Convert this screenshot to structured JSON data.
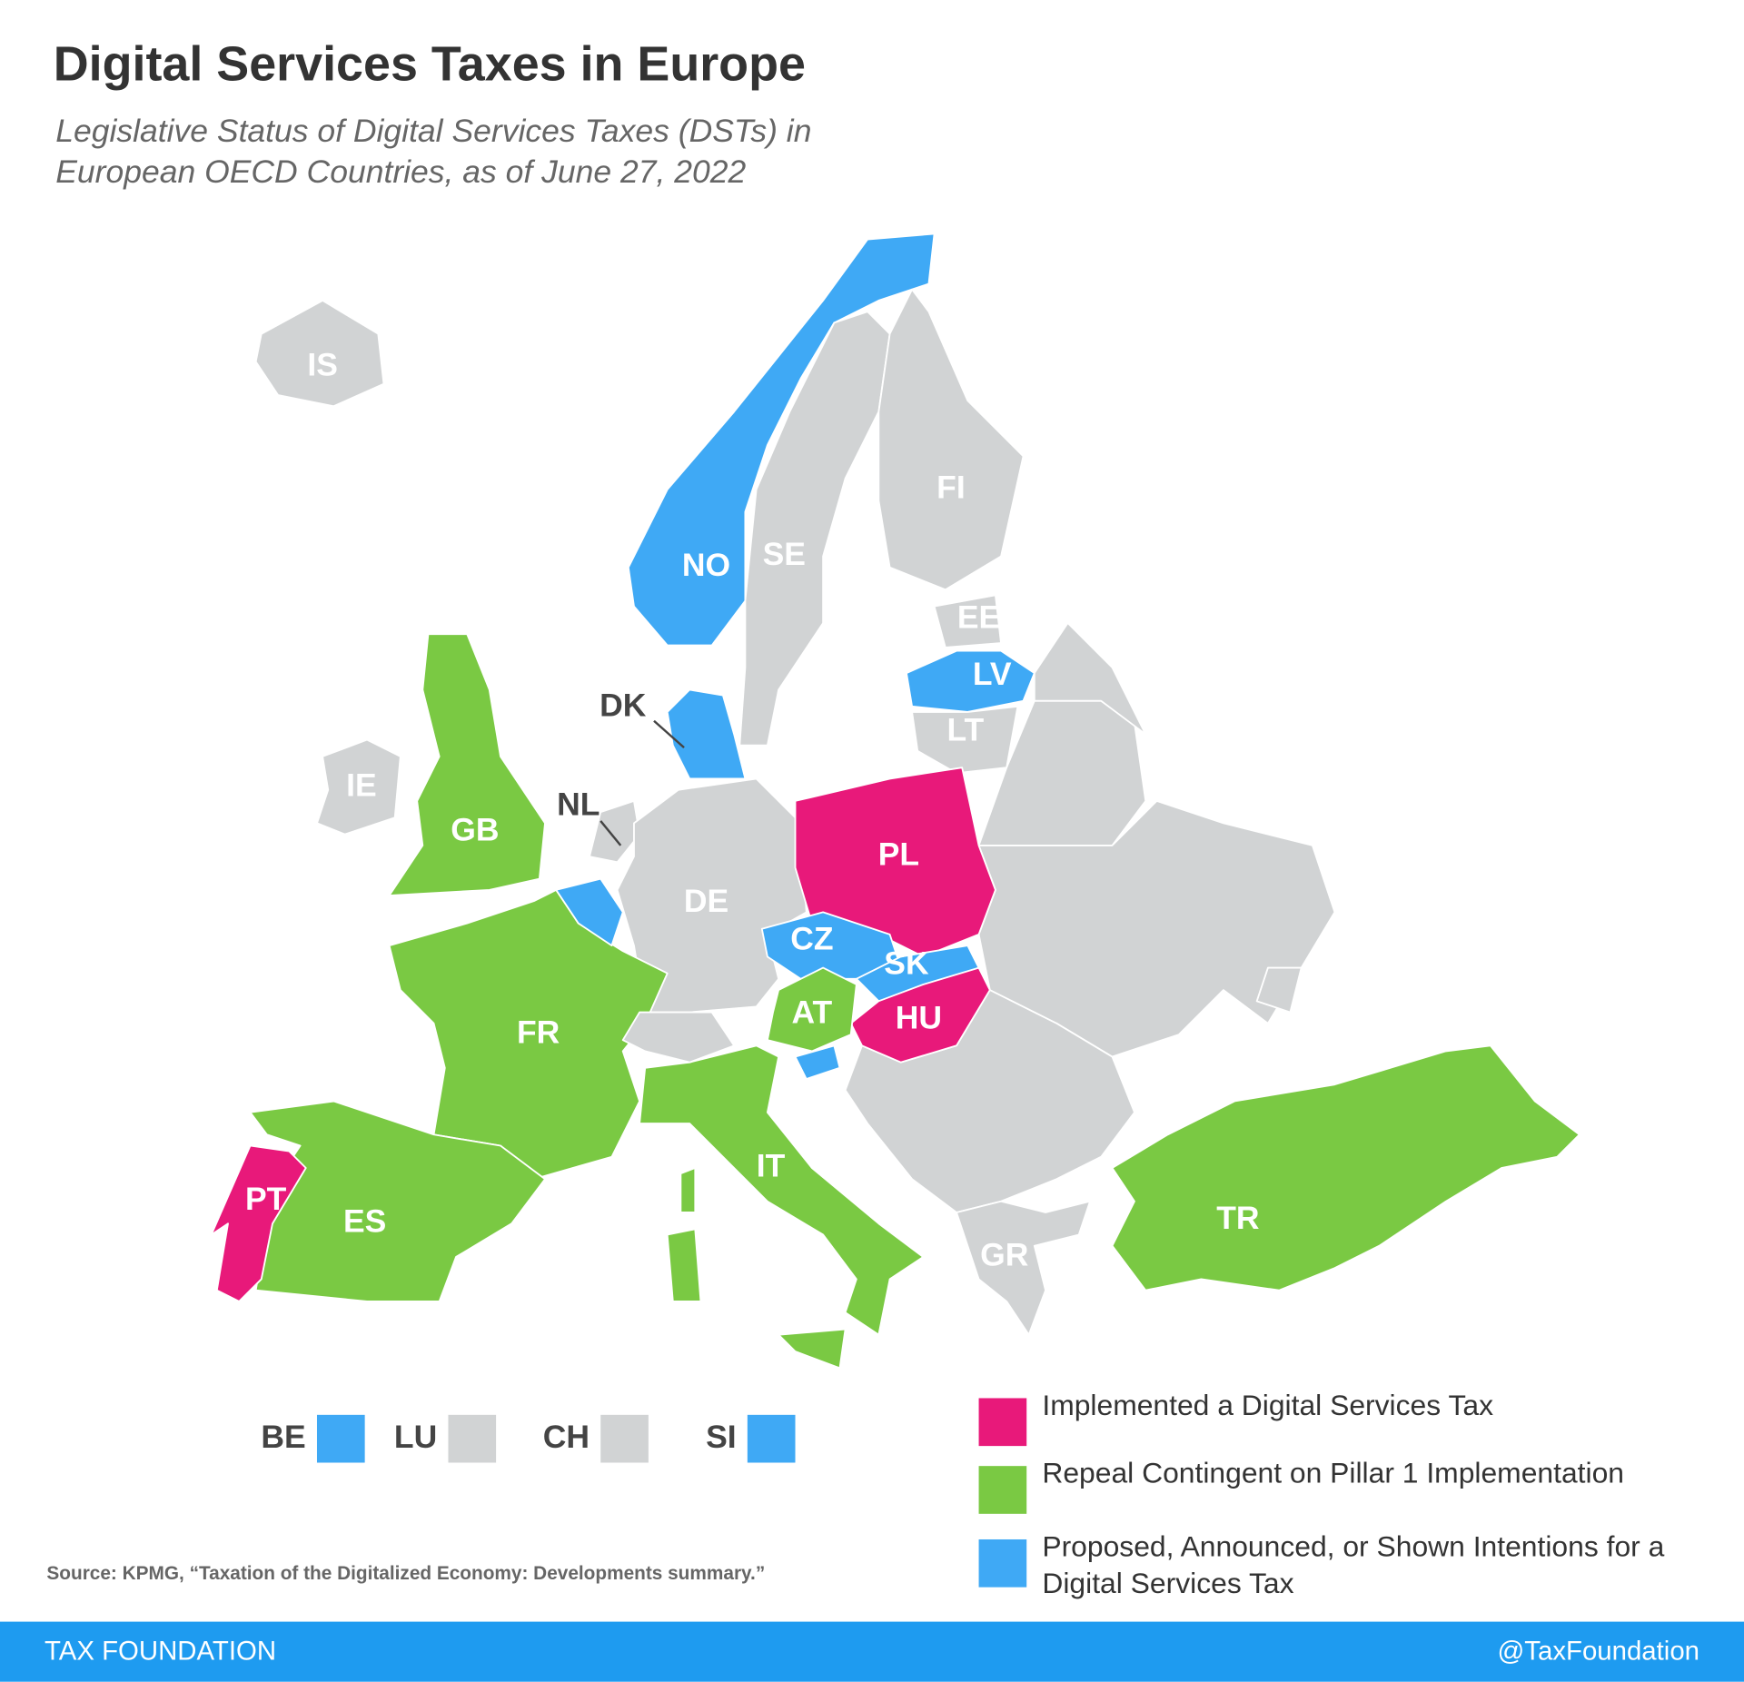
{
  "header": {
    "title": "Digital Services Taxes in Europe",
    "subtitle": "Legislative Status of Digital Services Taxes (DSTs) in European OECD Countries, as of June 27, 2022"
  },
  "countries": [
    {
      "code": "IS",
      "color": "#d1d3d4"
    },
    {
      "code": "NO",
      "color": "#3fa9f5"
    },
    {
      "code": "SE",
      "color": "#d1d3d4"
    },
    {
      "code": "FI",
      "color": "#d1d3d4"
    },
    {
      "code": "EE",
      "color": "#d1d3d4"
    },
    {
      "code": "LV",
      "color": "#3fa9f5"
    },
    {
      "code": "LT",
      "color": "#d1d3d4"
    },
    {
      "code": "DK",
      "color": "#3fa9f5"
    },
    {
      "code": "IE",
      "color": "#d1d3d4"
    },
    {
      "code": "GB",
      "color": "#7ac943"
    },
    {
      "code": "NL",
      "color": "#d1d3d4"
    },
    {
      "code": "DE",
      "color": "#d1d3d4"
    },
    {
      "code": "PL",
      "color": "#e8197a"
    },
    {
      "code": "CZ",
      "color": "#3fa9f5"
    },
    {
      "code": "SK",
      "color": "#3fa9f5"
    },
    {
      "code": "HU",
      "color": "#e8197a"
    },
    {
      "code": "AT",
      "color": "#7ac943"
    },
    {
      "code": "FR",
      "color": "#7ac943"
    },
    {
      "code": "IT",
      "color": "#7ac943"
    },
    {
      "code": "ES",
      "color": "#7ac943"
    },
    {
      "code": "PT",
      "color": "#e8197a"
    },
    {
      "code": "TR",
      "color": "#7ac943"
    },
    {
      "code": "GR",
      "color": "#d1d3d4"
    }
  ],
  "small_countries": [
    {
      "code": "BE",
      "color": "#3fa9f5"
    },
    {
      "code": "LU",
      "color": "#d1d3d4"
    },
    {
      "code": "CH",
      "color": "#d1d3d4"
    },
    {
      "code": "SI",
      "color": "#3fa9f5"
    }
  ],
  "legend": [
    {
      "label": "Implemented a Digital Services Tax",
      "color": "#e8197a"
    },
    {
      "label": "Repeal Contingent on Pillar 1 Implementation",
      "color": "#7ac943"
    },
    {
      "label": "Proposed, Announced, or Shown Intentions for a Digital Services Tax",
      "color": "#3fa9f5"
    }
  ],
  "source": "Source: KPMG, “Taxation of the Digitalized Economy: Developments summary.”",
  "footer": {
    "brand": "TAX FOUNDATION",
    "handle": "@TaxFoundation"
  }
}
